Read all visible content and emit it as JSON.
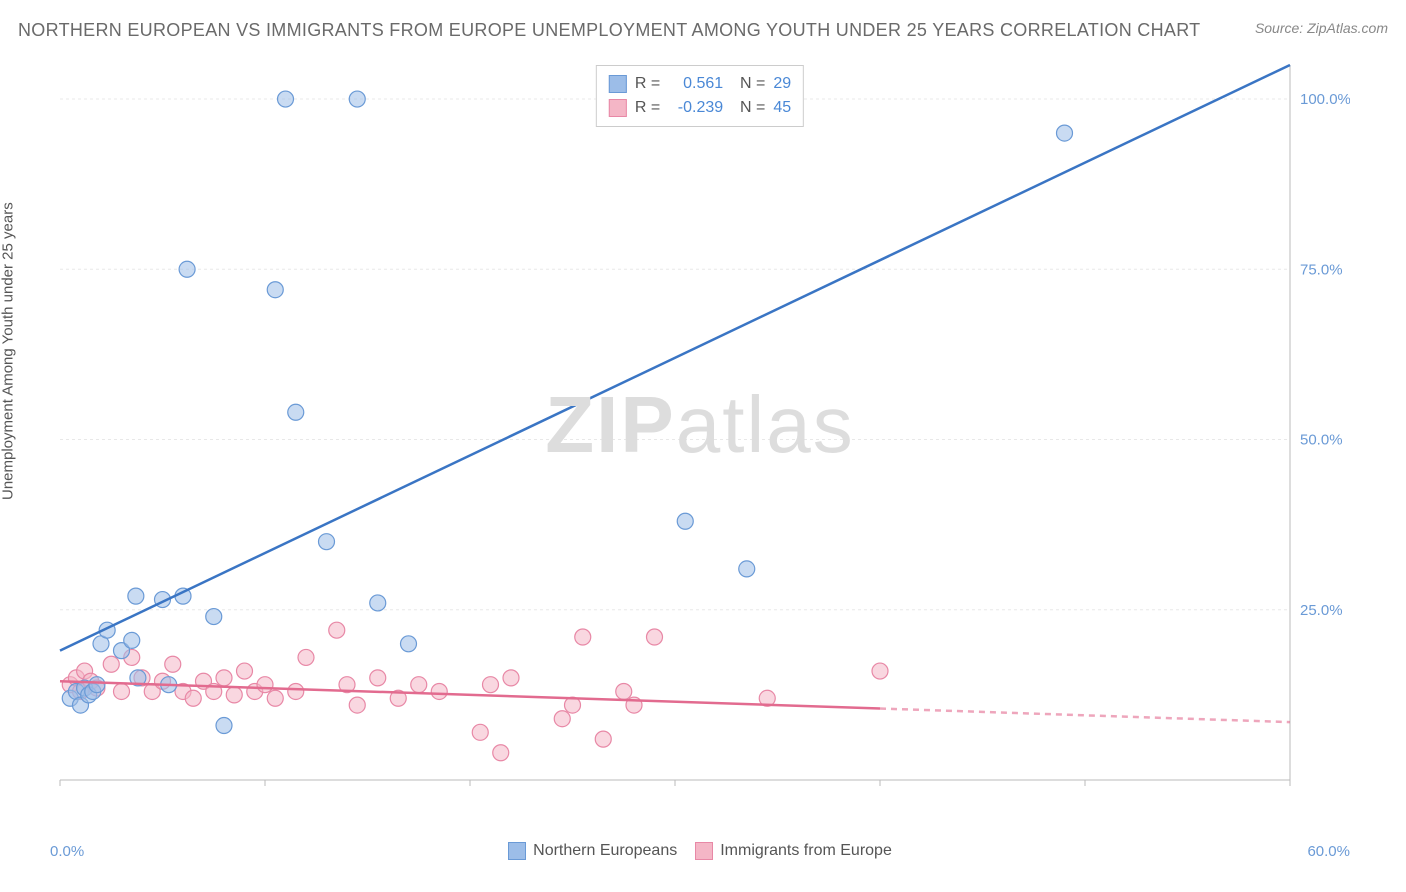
{
  "header": {
    "title": "NORTHERN EUROPEAN VS IMMIGRANTS FROM EUROPE UNEMPLOYMENT AMONG YOUTH UNDER 25 YEARS CORRELATION CHART",
    "source": "Source: ZipAtlas.com"
  },
  "ylabel": "Unemployment Among Youth under 25 years",
  "watermark": {
    "part1": "ZIP",
    "part2": "atlas"
  },
  "chart": {
    "type": "scatter",
    "xlim": [
      0,
      60
    ],
    "ylim": [
      0,
      105
    ],
    "x_ticks": [
      0,
      10,
      20,
      30,
      40,
      50,
      60
    ],
    "x_tick_labels": [
      "0.0%",
      "",
      "",
      "",
      "",
      "",
      "60.0%"
    ],
    "y_ticks": [
      25,
      50,
      75,
      100
    ],
    "y_tick_labels": [
      "25.0%",
      "50.0%",
      "75.0%",
      "100.0%"
    ],
    "grid_color": "#e8e8e8",
    "axis_color": "#bbbbbb",
    "background_color": "#ffffff",
    "marker_radius": 8,
    "marker_opacity": 0.55,
    "line_width": 2.5,
    "series": [
      {
        "name": "Northern Europeans",
        "color_fill": "#9cbde8",
        "color_stroke": "#6a9ad6",
        "line_color": "#3a75c4",
        "R": "0.561",
        "N": "29",
        "trend": {
          "x1": 0,
          "y1": 19,
          "x2": 51,
          "y2": 105,
          "dash_after_x": 60
        },
        "points": [
          [
            0.5,
            12
          ],
          [
            0.8,
            13
          ],
          [
            1.0,
            11
          ],
          [
            1.2,
            13.5
          ],
          [
            1.4,
            12.5
          ],
          [
            1.6,
            13
          ],
          [
            1.8,
            14
          ],
          [
            2.0,
            20
          ],
          [
            2.3,
            22
          ],
          [
            3.0,
            19
          ],
          [
            3.5,
            20.5
          ],
          [
            3.8,
            15
          ],
          [
            3.7,
            27
          ],
          [
            5.0,
            26.5
          ],
          [
            5.3,
            14
          ],
          [
            6.0,
            27
          ],
          [
            6.2,
            75
          ],
          [
            7.5,
            24
          ],
          [
            8.0,
            8
          ],
          [
            10.5,
            72
          ],
          [
            11.0,
            100
          ],
          [
            11.5,
            54
          ],
          [
            13.0,
            35
          ],
          [
            14.5,
            100
          ],
          [
            15.5,
            26
          ],
          [
            17.0,
            20
          ],
          [
            30.5,
            38
          ],
          [
            33.5,
            31
          ],
          [
            49.0,
            95
          ]
        ]
      },
      {
        "name": "Immigrants from Europe",
        "color_fill": "#f4b6c6",
        "color_stroke": "#e888a6",
        "line_color": "#e26b8f",
        "R": "-0.239",
        "N": "45",
        "trend": {
          "x1": 0,
          "y1": 14.5,
          "x2": 40,
          "y2": 10.5,
          "dash_after_x": 40,
          "dash_x2": 60,
          "dash_y2": 8.5
        },
        "points": [
          [
            0.5,
            14
          ],
          [
            0.8,
            15
          ],
          [
            1.0,
            13
          ],
          [
            1.2,
            16
          ],
          [
            1.5,
            14.5
          ],
          [
            1.8,
            13.5
          ],
          [
            2.5,
            17
          ],
          [
            3.0,
            13
          ],
          [
            3.5,
            18
          ],
          [
            4.0,
            15
          ],
          [
            4.5,
            13
          ],
          [
            5.0,
            14.5
          ],
          [
            5.5,
            17
          ],
          [
            6.0,
            13
          ],
          [
            6.5,
            12
          ],
          [
            7.0,
            14.5
          ],
          [
            7.5,
            13
          ],
          [
            8.0,
            15
          ],
          [
            8.5,
            12.5
          ],
          [
            9.0,
            16
          ],
          [
            9.5,
            13
          ],
          [
            10.0,
            14
          ],
          [
            10.5,
            12
          ],
          [
            11.5,
            13
          ],
          [
            12.0,
            18
          ],
          [
            13.5,
            22
          ],
          [
            14.0,
            14
          ],
          [
            14.5,
            11
          ],
          [
            15.5,
            15
          ],
          [
            16.5,
            12
          ],
          [
            17.5,
            14
          ],
          [
            18.5,
            13
          ],
          [
            20.5,
            7
          ],
          [
            21.0,
            14
          ],
          [
            21.5,
            4
          ],
          [
            22.0,
            15
          ],
          [
            24.5,
            9
          ],
          [
            25.0,
            11
          ],
          [
            25.5,
            21
          ],
          [
            26.5,
            6
          ],
          [
            27.5,
            13
          ],
          [
            28.0,
            11
          ],
          [
            29.0,
            21
          ],
          [
            34.5,
            12
          ],
          [
            40.0,
            16
          ]
        ]
      }
    ]
  },
  "legend": {
    "series1": "Northern Europeans",
    "series2": "Immigrants from Europe"
  }
}
